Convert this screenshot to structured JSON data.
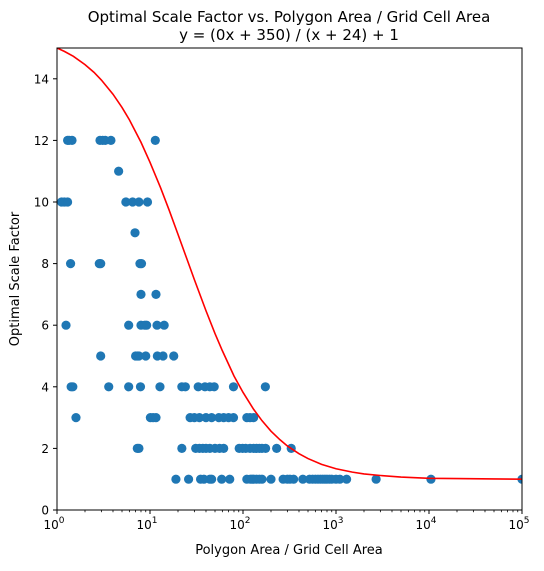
{
  "chart_data": {
    "type": "scatter",
    "title": "Optimal Scale Factor vs. Polygon Area / Grid Cell Area",
    "subtitle": "y = (0x + 350) / (x + 24) + 1",
    "xlabel": "Polygon Area / Grid Cell Area",
    "ylabel": "Optimal Scale Factor",
    "xscale": "log",
    "xlim": [
      1,
      100000
    ],
    "ylim": [
      0,
      15
    ],
    "x_ticks": [
      {
        "value": 1,
        "base": "10",
        "exp": "0"
      },
      {
        "value": 10,
        "base": "10",
        "exp": "1"
      },
      {
        "value": 100,
        "base": "10",
        "exp": "2"
      },
      {
        "value": 1000,
        "base": "10",
        "exp": "3"
      },
      {
        "value": 10000,
        "base": "10",
        "exp": "4"
      },
      {
        "value": 100000,
        "base": "10",
        "exp": "5"
      }
    ],
    "y_ticks": [
      "0",
      "2",
      "4",
      "6",
      "8",
      "10",
      "12",
      "14"
    ],
    "grid": false,
    "colors": {
      "points": "#1f77b4",
      "curve": "#ff0000"
    },
    "series": [
      {
        "kind": "points",
        "x": [
          1.3,
          1.35,
          1.45,
          1.12,
          1.2,
          1.3,
          1.4,
          1.25,
          1.42,
          1.48,
          1.6,
          2.9,
          3.1,
          3.3,
          3.8,
          4.6,
          5.5,
          6.5,
          6.9,
          7.6,
          9.4,
          11.4,
          2.85,
          2.95,
          7.8,
          8.1,
          5.9,
          7.3,
          8.0,
          8.8,
          9.2,
          11.9,
          14.2,
          18.0,
          2.95,
          7.0,
          7.6,
          9.0,
          12.0,
          13.8,
          8.0,
          11.6,
          3.6,
          5.9,
          7.9,
          12.8,
          22,
          24,
          33,
          39,
          44,
          49,
          79,
          174,
          10.1,
          10.8,
          11.6,
          27,
          30,
          34,
          40,
          46,
          55,
          62,
          70,
          79,
          110,
          119,
          130,
          7.3,
          7.6,
          22,
          31,
          34,
          37,
          40,
          44,
          50,
          56,
          62,
          91,
          99,
          107,
          119,
          130,
          140,
          150,
          160,
          175,
          230,
          330,
          19,
          26,
          35,
          38,
          44,
          46,
          59,
          72,
          110,
          120,
          125,
          130,
          140,
          150,
          160,
          200,
          270,
          300,
          320,
          350,
          440,
          520,
          560,
          600,
          640,
          680,
          720,
          760,
          800,
          850,
          900,
          1000,
          1100,
          1300,
          2700,
          10500,
          100000
        ],
        "y": [
          12,
          12,
          12,
          10,
          10,
          10,
          8,
          6,
          4,
          4,
          3,
          12,
          12,
          12,
          12,
          11,
          10,
          10,
          9,
          10,
          10,
          12,
          8,
          8,
          8,
          8,
          6,
          5,
          6,
          6,
          6,
          6,
          6,
          5,
          5,
          5,
          5,
          5,
          5,
          5,
          7,
          7,
          4,
          4,
          4,
          4,
          4,
          4,
          4,
          4,
          4,
          4,
          4,
          4,
          3,
          3,
          3,
          3,
          3,
          3,
          3,
          3,
          3,
          3,
          3,
          3,
          3,
          3,
          3,
          2,
          2,
          2,
          2,
          2,
          2,
          2,
          2,
          2,
          2,
          2,
          2,
          2,
          2,
          2,
          2,
          2,
          2,
          2,
          2,
          2,
          2,
          1,
          1,
          1,
          1,
          1,
          1,
          1,
          1,
          1,
          1,
          1,
          1,
          1,
          1,
          1,
          1,
          1,
          1,
          1,
          1,
          1,
          1,
          1,
          1,
          1,
          1,
          1,
          1,
          1,
          1,
          1,
          1,
          1,
          1,
          1,
          1,
          1
        ]
      },
      {
        "kind": "curve",
        "formula": "350/(x+24)+1",
        "x": [
          1,
          1.2,
          1.5,
          2,
          2.5,
          3,
          4,
          5,
          6,
          8,
          10,
          13,
          16,
          20,
          25,
          30,
          40,
          50,
          60,
          80,
          100,
          130,
          160,
          200,
          250,
          300,
          400,
          500,
          700,
          1000,
          1500,
          2000,
          3000,
          5000,
          10000,
          20000,
          50000,
          100000
        ],
        "y": [
          15.0,
          14.89,
          14.73,
          14.46,
          14.21,
          13.96,
          13.5,
          13.07,
          12.67,
          11.94,
          11.29,
          10.46,
          9.75,
          8.95,
          8.14,
          7.48,
          6.47,
          5.73,
          5.17,
          4.35,
          3.82,
          3.27,
          2.9,
          2.56,
          2.28,
          2.08,
          1.83,
          1.67,
          1.48,
          1.34,
          1.23,
          1.17,
          1.12,
          1.07,
          1.03,
          1.02,
          1.01,
          1.0
        ]
      }
    ]
  }
}
